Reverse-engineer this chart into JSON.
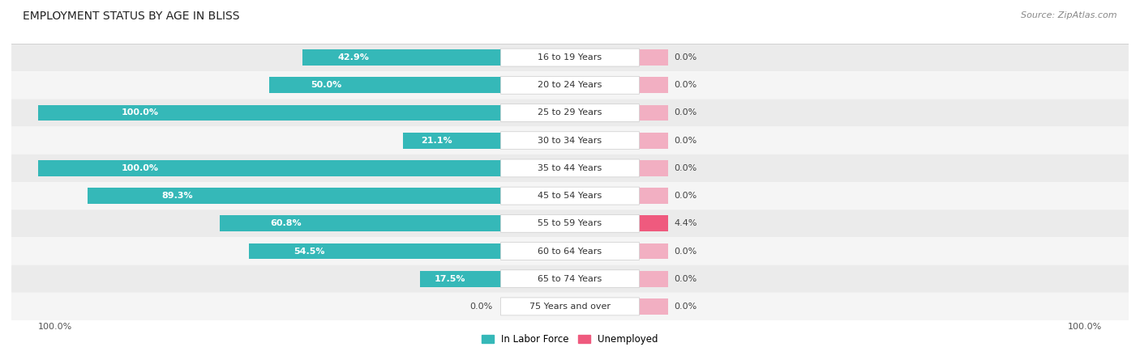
{
  "title": "EMPLOYMENT STATUS BY AGE IN BLISS",
  "source": "Source: ZipAtlas.com",
  "categories": [
    "16 to 19 Years",
    "20 to 24 Years",
    "25 to 29 Years",
    "30 to 34 Years",
    "35 to 44 Years",
    "45 to 54 Years",
    "55 to 59 Years",
    "60 to 64 Years",
    "65 to 74 Years",
    "75 Years and over"
  ],
  "labor_force": [
    42.9,
    50.0,
    100.0,
    21.1,
    100.0,
    89.3,
    60.8,
    54.5,
    17.5,
    0.0
  ],
  "unemployed": [
    0.0,
    0.0,
    0.0,
    0.0,
    0.0,
    0.0,
    4.4,
    0.0,
    0.0,
    0.0
  ],
  "labor_force_color": "#35b8b8",
  "unemployed_color_low": "#f2afc2",
  "unemployed_color_high": "#ef5a7e",
  "row_bg_dark": "#ebebeb",
  "row_bg_light": "#f5f5f5",
  "axis_label_left": "100.0%",
  "axis_label_right": "100.0%",
  "legend_labor": "In Labor Force",
  "legend_unemployed": "Unemployed",
  "title_fontsize": 10,
  "cat_fontsize": 8,
  "val_fontsize": 8,
  "source_fontsize": 8
}
